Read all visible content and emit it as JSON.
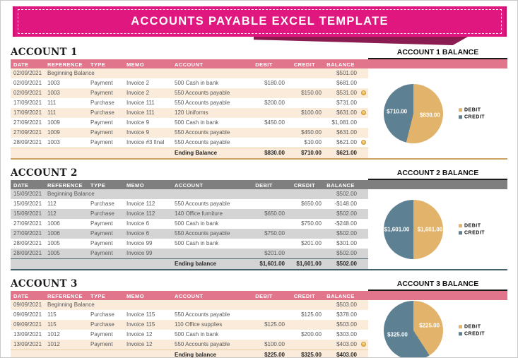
{
  "banner": {
    "title": "ACCOUNTS PAYABLE EXCEL TEMPLATE"
  },
  "colors": {
    "banner_pink": "#E0177F",
    "banner_fold": "#8A1C52",
    "pink_header": "#E0758C",
    "pink_row_alt": "#FAEBDB",
    "gray_header": "#7F7F7F",
    "gray_row_alt": "#D4D4D4",
    "pink_border": "#C9A462",
    "gray_border": "#44616C",
    "pie_debit": "#E2B36A",
    "pie_credit": "#5E8093",
    "text_muted": "#595959"
  },
  "columns": [
    {
      "key": "date",
      "label": "DATE"
    },
    {
      "key": "reference",
      "label": "REFERENCE"
    },
    {
      "key": "type",
      "label": "TYPE"
    },
    {
      "key": "memo",
      "label": "MEMO"
    },
    {
      "key": "account",
      "label": "ACCOUNT"
    },
    {
      "key": "debit",
      "label": "DEBIT"
    },
    {
      "key": "credit",
      "label": "CREDIT"
    },
    {
      "key": "balance",
      "label": "BALANCE"
    }
  ],
  "legend": [
    {
      "label": "DEBIT",
      "color": "#E2B36A"
    },
    {
      "label": "CREDIT",
      "color": "#5E8093"
    }
  ],
  "sections": [
    {
      "title": "ACCOUNT 1",
      "chart_title": "ACCOUNT 1 BALANCE",
      "theme": "pink",
      "rows": [
        {
          "date": "02/09/2021",
          "reference": "Beginning Balance",
          "type": "",
          "memo": "",
          "account": "",
          "debit": "",
          "credit": "",
          "balance": "$501.00",
          "coin": false
        },
        {
          "date": "02/09/2021",
          "reference": "1003",
          "type": "Payment",
          "memo": "Invoice 2",
          "account": "500 Cash in bank",
          "debit": "$180.00",
          "credit": "",
          "balance": "$681.00",
          "coin": false
        },
        {
          "date": "02/09/2021",
          "reference": "1003",
          "type": "Payment",
          "memo": "Invoice 2",
          "account": "550 Accounts payable",
          "debit": "",
          "credit": "$150.00",
          "balance": "$531.00",
          "coin": true
        },
        {
          "date": "17/09/2021",
          "reference": "111",
          "type": "Purchase",
          "memo": "Invoice 111",
          "account": "550 Accounts payable",
          "debit": "$200.00",
          "credit": "",
          "balance": "$731.00",
          "coin": false
        },
        {
          "date": "17/09/2021",
          "reference": "111",
          "type": "Purchase",
          "memo": "Invoice 111",
          "account": "120 Uniforms",
          "debit": "",
          "credit": "$100.00",
          "balance": "$631.00",
          "coin": true
        },
        {
          "date": "27/09/2021",
          "reference": "1009",
          "type": "Payment",
          "memo": "Invoice 9",
          "account": "500 Cash in bank",
          "debit": "$450.00",
          "credit": "",
          "balance": "$1,081.00",
          "coin": false
        },
        {
          "date": "27/09/2021",
          "reference": "1009",
          "type": "Payment",
          "memo": "Invoice 9",
          "account": "550 Accounts payable",
          "debit": "",
          "credit": "$450.00",
          "balance": "$631.00",
          "coin": false
        },
        {
          "date": "28/09/2021",
          "reference": "1003",
          "type": "Payment",
          "memo": "Invoice #3 final",
          "account": "550 Accounts payable",
          "debit": "",
          "credit": "$10.00",
          "balance": "$621.00",
          "coin": true
        }
      ],
      "ending": {
        "label": "Ending Balance",
        "debit": "$830.00",
        "credit": "$710.00",
        "balance": "$621.00"
      },
      "pie": {
        "debit": 830,
        "credit": 710,
        "debit_label": "$830.00",
        "credit_label": "$710.00"
      }
    },
    {
      "title": "ACCOUNT 2",
      "chart_title": "ACCOUNT 2 BALANCE",
      "theme": "gray",
      "rows": [
        {
          "date": "15/09/2021",
          "reference": "Beginning Balance",
          "type": "",
          "memo": "",
          "account": "",
          "debit": "",
          "credit": "",
          "balance": "$502.00",
          "coin": false
        },
        {
          "date": "15/09/2021",
          "reference": "112",
          "type": "Purchase",
          "memo": "Invoice 112",
          "account": "550 Accounts payable",
          "debit": "",
          "credit": "$650.00",
          "balance": "-$148.00",
          "coin": false
        },
        {
          "date": "15/09/2021",
          "reference": "112",
          "type": "Purchase",
          "memo": "Invoice 112",
          "account": "140 Office furniture",
          "debit": "$650.00",
          "credit": "",
          "balance": "$502.00",
          "coin": false
        },
        {
          "date": "27/09/2021",
          "reference": "1006",
          "type": "Payment",
          "memo": "Invoice 6",
          "account": "500 Cash in bank",
          "debit": "",
          "credit": "$750.00",
          "balance": "-$248.00",
          "coin": false
        },
        {
          "date": "27/09/2021",
          "reference": "1006",
          "type": "Payment",
          "memo": "Invoice 6",
          "account": "550 Accounts payable",
          "debit": "$750.00",
          "credit": "",
          "balance": "$502.00",
          "coin": false
        },
        {
          "date": "28/09/2021",
          "reference": "1005",
          "type": "Payment",
          "memo": "Invoice 99",
          "account": "500 Cash in bank",
          "debit": "",
          "credit": "$201.00",
          "balance": "$301.00",
          "coin": false
        },
        {
          "date": "28/09/2021",
          "reference": "1005",
          "type": "Payment",
          "memo": "Invoice 99",
          "account": "",
          "debit": "$201.00",
          "credit": "",
          "balance": "$502.00",
          "coin": false
        }
      ],
      "ending": {
        "label": "Ending balance",
        "debit": "$1,601.00",
        "credit": "$1,601.00",
        "balance": "$502.00"
      },
      "pie": {
        "debit": 1601,
        "credit": 1601,
        "debit_label": "$1,601.00",
        "credit_label": "$1,601.00"
      }
    },
    {
      "title": "ACCOUNT 3",
      "chart_title": "ACCOUNT 3 BALANCE",
      "theme": "pink",
      "rows": [
        {
          "date": "09/09/2021",
          "reference": "Beginning Balance",
          "type": "",
          "memo": "",
          "account": "",
          "debit": "",
          "credit": "",
          "balance": "$503.00",
          "coin": false
        },
        {
          "date": "09/09/2021",
          "reference": "115",
          "type": "Purchase",
          "memo": "Invoice 115",
          "account": "550 Accounts payable",
          "debit": "",
          "credit": "$125.00",
          "balance": "$378.00",
          "coin": false
        },
        {
          "date": "09/09/2021",
          "reference": "115",
          "type": "Purchase",
          "memo": "Invoice 115",
          "account": "110 Office supplies",
          "debit": "$125.00",
          "credit": "",
          "balance": "$503.00",
          "coin": false
        },
        {
          "date": "13/09/2021",
          "reference": "1012",
          "type": "Payment",
          "memo": "Invoice 12",
          "account": "500 Cash in bank",
          "debit": "",
          "credit": "$200.00",
          "balance": "$303.00",
          "coin": false
        },
        {
          "date": "13/09/2021",
          "reference": "1012",
          "type": "Payment",
          "memo": "Invoice 12",
          "account": "550 Accounts payable",
          "debit": "$100.00",
          "credit": "",
          "balance": "$403.00",
          "coin": true
        }
      ],
      "ending": {
        "label": "Ending balance",
        "debit": "$225.00",
        "credit": "$325.00",
        "balance": "$403.00"
      },
      "pie": {
        "debit": 225,
        "credit": 325,
        "debit_label": "$225.00",
        "credit_label": "$325.00"
      }
    }
  ],
  "chart_data": [
    {
      "type": "pie",
      "title": "ACCOUNT 1 BALANCE",
      "labels": [
        "DEBIT",
        "CREDIT"
      ],
      "values": [
        830,
        710
      ],
      "value_labels": [
        "$830.00",
        "$710.00"
      ],
      "colors": [
        "#E2B36A",
        "#5E8093"
      ],
      "legend_position": "right"
    },
    {
      "type": "pie",
      "title": "ACCOUNT 2 BALANCE",
      "labels": [
        "DEBIT",
        "CREDIT"
      ],
      "values": [
        1601,
        1601
      ],
      "value_labels": [
        "$1,601.00",
        "$1,601.00"
      ],
      "colors": [
        "#E2B36A",
        "#5E8093"
      ],
      "legend_position": "right"
    },
    {
      "type": "pie",
      "title": "ACCOUNT 3 BALANCE",
      "labels": [
        "DEBIT",
        "CREDIT"
      ],
      "values": [
        225,
        325
      ],
      "value_labels": [
        "$225.00",
        "$325.00"
      ],
      "colors": [
        "#E2B36A",
        "#5E8093"
      ],
      "legend_position": "right"
    }
  ]
}
